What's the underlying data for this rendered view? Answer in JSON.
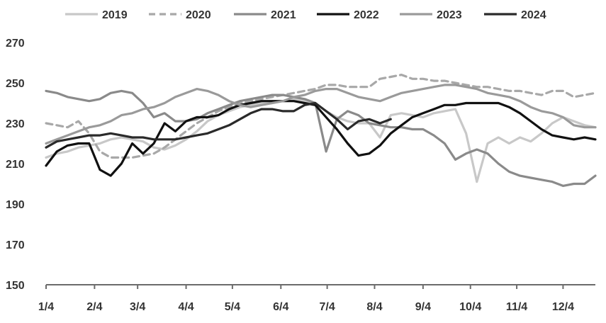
{
  "chart_data": {
    "type": "line",
    "title": "",
    "xlabel": "",
    "ylabel": "",
    "x_range": [
      1,
      52
    ],
    "ylim": [
      150,
      270
    ],
    "y_ticks": [
      150,
      170,
      190,
      210,
      230,
      250,
      270
    ],
    "x_ticks": [
      {
        "label": "1/4",
        "week": 1
      },
      {
        "label": "2/4",
        "week": 5.5
      },
      {
        "label": "3/4",
        "week": 9.5
      },
      {
        "label": "4/4",
        "week": 14
      },
      {
        "label": "5/4",
        "week": 18.3
      },
      {
        "label": "6/4",
        "week": 22.8
      },
      {
        "label": "7/4",
        "week": 27.1
      },
      {
        "label": "8/4",
        "week": 31.5
      },
      {
        "label": "9/4",
        "week": 36
      },
      {
        "label": "10/4",
        "week": 40.4
      },
      {
        "label": "11/4",
        "week": 44.7
      },
      {
        "label": "12/4",
        "week": 49
      }
    ],
    "grid": false,
    "legend_position": "top",
    "series": [
      {
        "name": "2019",
        "color": "#c8c8c8",
        "dash": "solid",
        "x": [
          1,
          2,
          3,
          4,
          5,
          6,
          7,
          8,
          9,
          10,
          11,
          12,
          13,
          14,
          15,
          16,
          17,
          18,
          19,
          20,
          21,
          22,
          23,
          24,
          25,
          26,
          27,
          28,
          29,
          30,
          31,
          32,
          33,
          34,
          35,
          36,
          37,
          38,
          39,
          40,
          41,
          42,
          43,
          44,
          45,
          46,
          47,
          48,
          49,
          50,
          51,
          52
        ],
        "values": [
          213,
          215,
          216,
          218,
          219,
          220,
          222,
          223,
          222,
          221,
          218,
          217,
          219,
          222,
          226,
          231,
          234,
          236,
          238,
          239,
          240,
          241,
          241,
          242,
          241,
          240,
          236,
          233,
          231,
          230,
          230,
          223,
          234,
          235,
          234,
          233,
          235,
          236,
          237,
          225,
          201,
          220,
          223,
          220,
          223,
          221,
          225,
          230,
          233,
          231,
          229,
          228
        ]
      },
      {
        "name": "2020",
        "color": "#a8a8a8",
        "dash": "dashed",
        "x": [
          1,
          2,
          3,
          4,
          5,
          6,
          7,
          8,
          9,
          10,
          11,
          12,
          13,
          14,
          15,
          16,
          17,
          18,
          19,
          20,
          21,
          22,
          23,
          24,
          25,
          26,
          27,
          28,
          29,
          30,
          31,
          32,
          33,
          34,
          35,
          36,
          37,
          38,
          39,
          40,
          41,
          42,
          43,
          44,
          45,
          46,
          47,
          48,
          49,
          50,
          51,
          52
        ],
        "values": [
          230,
          229,
          228,
          231,
          225,
          216,
          213,
          213,
          213,
          214,
          215,
          218,
          222,
          226,
          230,
          233,
          236,
          238,
          240,
          241,
          242,
          243,
          244,
          245,
          246,
          247,
          249,
          249,
          248,
          248,
          248,
          252,
          253,
          254,
          252,
          252,
          251,
          251,
          250,
          249,
          248,
          248,
          247,
          246,
          246,
          245,
          244,
          246,
          246,
          243,
          244,
          245
        ]
      },
      {
        "name": "2021",
        "color": "#8a8a8a",
        "dash": "solid",
        "x": [
          1,
          2,
          3,
          4,
          5,
          6,
          7,
          8,
          9,
          10,
          11,
          12,
          13,
          14,
          15,
          16,
          17,
          18,
          19,
          20,
          21,
          22,
          23,
          24,
          25,
          26,
          27,
          28,
          29,
          30,
          31,
          32,
          33,
          34,
          35,
          36,
          37,
          38,
          39,
          40,
          41,
          42,
          43,
          44,
          45,
          46,
          47,
          48,
          49,
          50,
          51,
          52
        ],
        "values": [
          246,
          245,
          243,
          242,
          241,
          242,
          245,
          246,
          245,
          240,
          233,
          235,
          231,
          231,
          232,
          235,
          237,
          239,
          241,
          242,
          243,
          244,
          244,
          243,
          242,
          240,
          216,
          232,
          236,
          234,
          230,
          229,
          228,
          228,
          227,
          227,
          224,
          220,
          212,
          215,
          217,
          215,
          210,
          206,
          204,
          203,
          202,
          201,
          199,
          200,
          200,
          204
        ]
      },
      {
        "name": "2022",
        "color": "#111111",
        "dash": "solid",
        "x": [
          1,
          2,
          3,
          4,
          5,
          6,
          7,
          8,
          9,
          10,
          11,
          12,
          13,
          14,
          15,
          16,
          17,
          18,
          19,
          20,
          21,
          22,
          23,
          24,
          25,
          26,
          27,
          28,
          29,
          30,
          31,
          32,
          33,
          34,
          35,
          36,
          37,
          38,
          39,
          40,
          41,
          42,
          43,
          44,
          45,
          46,
          47,
          48,
          49,
          50,
          51,
          52
        ],
        "values": [
          209,
          216,
          219,
          220,
          220,
          207,
          204,
          210,
          220,
          215,
          220,
          230,
          226,
          231,
          233,
          233,
          234,
          237,
          239,
          240,
          241,
          241,
          241,
          241,
          240,
          239,
          233,
          227,
          220,
          214,
          215,
          219,
          225,
          229,
          233,
          235,
          237,
          239,
          239,
          240,
          240,
          240,
          240,
          238,
          235,
          231,
          227,
          224,
          223,
          222,
          223,
          222
        ]
      },
      {
        "name": "2023",
        "color": "#9a9a9a",
        "dash": "solid",
        "x": [
          1,
          2,
          3,
          4,
          5,
          6,
          7,
          8,
          9,
          10,
          11,
          12,
          13,
          14,
          15,
          16,
          17,
          18,
          19,
          20,
          21,
          22,
          23,
          24,
          25,
          26,
          27,
          28,
          29,
          30,
          31,
          32,
          33,
          34,
          35,
          36,
          37,
          38,
          39,
          40,
          41,
          42,
          43,
          44,
          45,
          46,
          47,
          48,
          49,
          50,
          51,
          52
        ],
        "values": [
          220,
          222,
          224,
          226,
          228,
          229,
          231,
          234,
          235,
          237,
          238,
          240,
          243,
          245,
          247,
          246,
          244,
          241,
          239,
          238,
          239,
          240,
          241,
          243,
          244,
          246,
          247,
          247,
          245,
          243,
          242,
          241,
          243,
          245,
          246,
          247,
          248,
          249,
          249,
          248,
          247,
          245,
          244,
          243,
          241,
          238,
          236,
          235,
          233,
          229,
          228,
          228
        ]
      },
      {
        "name": "2024",
        "color": "#2a2a2a",
        "dash": "solid",
        "x": [
          1,
          2,
          3,
          4,
          5,
          6,
          7,
          8,
          9,
          10,
          11,
          12,
          13,
          14,
          15,
          16,
          17,
          18,
          19,
          20,
          21,
          22,
          23,
          24,
          25,
          26,
          27,
          28,
          29,
          30,
          31,
          32,
          33
        ],
        "values": [
          218,
          221,
          222,
          223,
          224,
          224,
          225,
          224,
          223,
          223,
          222,
          222,
          222,
          223,
          224,
          225,
          227,
          229,
          232,
          235,
          237,
          237,
          236,
          236,
          239,
          240,
          236,
          232,
          227,
          231,
          232,
          230,
          232
        ]
      }
    ]
  }
}
